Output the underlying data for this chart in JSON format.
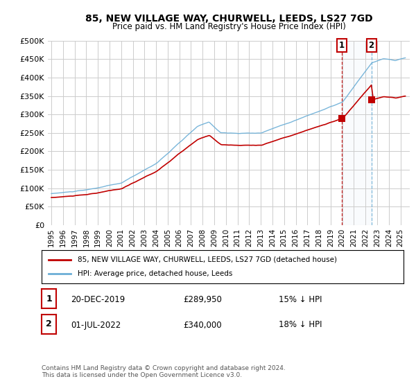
{
  "title": "85, NEW VILLAGE WAY, CHURWELL, LEEDS, LS27 7GD",
  "subtitle": "Price paid vs. HM Land Registry's House Price Index (HPI)",
  "ylim": [
    0,
    500000
  ],
  "yticks": [
    0,
    50000,
    100000,
    150000,
    200000,
    250000,
    300000,
    350000,
    400000,
    450000,
    500000
  ],
  "hpi_color": "#6baed6",
  "price_color": "#c00000",
  "dashed2_color": "#6baed6",
  "sale1_year": 2019.958,
  "sale2_year": 2022.5,
  "price_sale1": 289950,
  "price_sale2": 340000,
  "legend_label1": "85, NEW VILLAGE WAY, CHURWELL, LEEDS, LS27 7GD (detached house)",
  "legend_label2": "HPI: Average price, detached house, Leeds",
  "note1_num": "1",
  "note1_date": "20-DEC-2019",
  "note1_price": "£289,950",
  "note1_change": "15% ↓ HPI",
  "note2_num": "2",
  "note2_date": "01-JUL-2022",
  "note2_price": "£340,000",
  "note2_change": "18% ↓ HPI",
  "footer": "Contains HM Land Registry data © Crown copyright and database right 2024.\nThis data is licensed under the Open Government Licence v3.0.",
  "background_color": "#ffffff",
  "grid_color": "#cccccc",
  "xmin": 1994.7,
  "xmax": 2025.8
}
